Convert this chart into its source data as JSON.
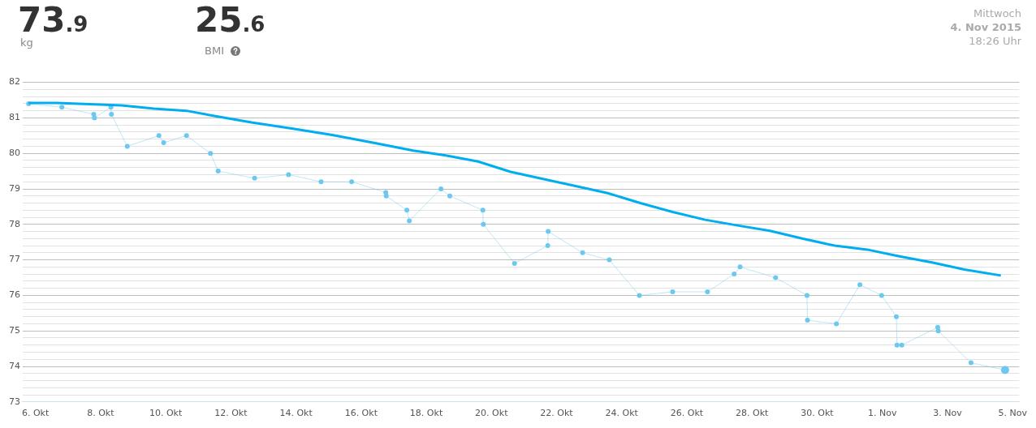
{
  "chart_data": {
    "type": "line",
    "annotations": [
      "73.9",
      "kg",
      "25.6",
      "BMI",
      "Mittwoch",
      "4. Nov 2015",
      "18:26 Uhr"
    ],
    "series": [
      {
        "color": "#6cc8ee",
        "marker": "circle",
        "line_style": "solid",
        "x": [
          "2015-10-05T19:00",
          "2015-10-06T19:30",
          "2015-10-07T19:00",
          "2015-10-07T19:30",
          "2015-10-08T07:40",
          "2015-10-08T08:00",
          "2015-10-08T19:40",
          "2015-10-09T19:00",
          "2015-10-09T22:30",
          "2015-10-10T15:20",
          "2015-10-11T09:00",
          "2015-10-11T14:40",
          "2015-10-12T17:30",
          "2015-10-13T18:30",
          "2015-10-14T18:30",
          "2015-10-15T17:00",
          "2015-10-16T18:10",
          "2015-10-16T18:30",
          "2015-10-17T09:40",
          "2015-10-17T11:30",
          "2015-10-18T10:50",
          "2015-10-18T17:20",
          "2015-10-19T17:40",
          "2015-10-19T18:00",
          "2015-10-20T17:00",
          "2015-10-21T17:30",
          "2015-10-21T17:50",
          "2015-10-22T19:10",
          "2015-10-23T14:50",
          "2015-10-24T13:00",
          "2015-10-25T13:30",
          "2015-10-26T15:10",
          "2015-10-27T10:50",
          "2015-10-27T15:10",
          "2015-10-28T17:20",
          "2015-10-29T16:30",
          "2015-10-29T16:50",
          "2015-10-30T14:10",
          "2015-10-31T07:30",
          "2015-10-31T23:30",
          "2015-11-01T10:20",
          "2015-11-01T10:50",
          "2015-11-01T14:20",
          "2015-11-02T16:50",
          "2015-11-02T17:10",
          "2015-11-03T17:20",
          "2015-11-04T18:26"
        ],
        "values": [
          81.4,
          81.3,
          81.1,
          81.0,
          81.3,
          81.1,
          80.2,
          80.5,
          80.3,
          80.5,
          80.0,
          79.5,
          79.3,
          79.4,
          79.2,
          79.2,
          78.9,
          78.8,
          78.4,
          78.1,
          79.0,
          78.8,
          78.4,
          78.0,
          76.9,
          77.4,
          77.8,
          77.2,
          77.0,
          76.0,
          76.1,
          76.1,
          76.6,
          76.8,
          76.5,
          76.0,
          75.3,
          75.2,
          76.3,
          76.0,
          75.4,
          74.6,
          74.6,
          75.1,
          75.0,
          74.1,
          73.9
        ]
      },
      {
        "color": "#00aeef",
        "marker": "none",
        "line_style": "solid",
        "x": [
          "2015-10-05T19:00",
          "2015-10-06T15:50",
          "2015-10-08T15:30",
          "2015-10-09T15:20",
          "2015-10-10T15:20",
          "2015-10-11T15:10",
          "2015-10-12T15:10",
          "2015-10-13T20:50",
          "2015-10-15T02:40",
          "2015-10-16T08:40",
          "2015-10-17T14:20",
          "2015-10-18T14:20",
          "2015-10-19T14:10",
          "2015-10-20T14:10",
          "2015-10-21T14:00",
          "2015-10-22T14:00",
          "2015-10-23T13:40",
          "2015-10-24T13:40",
          "2015-10-25T13:30",
          "2015-10-26T13:30",
          "2015-10-27T13:20",
          "2015-10-28T13:10",
          "2015-10-29T13:00",
          "2015-10-30T13:00",
          "2015-10-31T12:50",
          "2015-11-01T12:40",
          "2015-11-02T12:30",
          "2015-11-03T12:30",
          "2015-11-04T15:20"
        ],
        "values": [
          81.42,
          81.42,
          81.35,
          81.26,
          81.2,
          81.03,
          80.87,
          80.7,
          80.52,
          80.3,
          80.08,
          79.94,
          79.77,
          79.48,
          79.28,
          79.08,
          78.88,
          78.6,
          78.35,
          78.13,
          77.97,
          77.82,
          77.6,
          77.4,
          77.29,
          77.1,
          76.93,
          76.73,
          76.56
        ]
      }
    ],
    "xlim": [
      "2015-10-05T14:40",
      "2015-11-05T04:50"
    ],
    "xticks": [
      {
        "value": "2015-10-06",
        "label": "6. Okt"
      },
      {
        "value": "2015-10-08",
        "label": "8. Okt"
      },
      {
        "value": "2015-10-10",
        "label": "10. Okt"
      },
      {
        "value": "2015-10-12",
        "label": "12. Okt"
      },
      {
        "value": "2015-10-14",
        "label": "14. Okt"
      },
      {
        "value": "2015-10-16",
        "label": "16. Okt"
      },
      {
        "value": "2015-10-18",
        "label": "18. Okt"
      },
      {
        "value": "2015-10-20",
        "label": "20. Okt"
      },
      {
        "value": "2015-10-22",
        "label": "22. Okt"
      },
      {
        "value": "2015-10-24",
        "label": "24. Okt"
      },
      {
        "value": "2015-10-26",
        "label": "26. Okt"
      },
      {
        "value": "2015-10-28",
        "label": "28. Okt"
      },
      {
        "value": "2015-10-30",
        "label": "30. Okt"
      },
      {
        "value": "2015-11-01",
        "label": "1. Nov"
      },
      {
        "value": "2015-11-03",
        "label": "3. Nov"
      },
      {
        "value": "2015-11-05",
        "label": "5. Nov"
      }
    ],
    "ylim": [
      73,
      82
    ],
    "yticks": [
      73,
      {
        "value": 73.2,
        "label": null
      },
      {
        "value": 73.4,
        "label": null
      },
      {
        "value": 73.6,
        "label": null
      },
      {
        "value": 73.8,
        "label": null
      },
      74,
      {
        "value": 74.2,
        "label": null
      },
      {
        "value": 74.4,
        "label": null
      },
      {
        "value": 74.6,
        "label": null
      },
      {
        "value": 74.8,
        "label": null
      },
      75,
      {
        "value": 75.2,
        "label": null
      },
      {
        "value": 75.4,
        "label": null
      },
      {
        "value": 75.6,
        "label": null
      },
      {
        "value": 75.8,
        "label": null
      },
      76,
      {
        "value": 76.2,
        "label": null
      },
      {
        "value": 76.4,
        "label": null
      },
      {
        "value": 76.6,
        "label": null
      },
      {
        "value": 76.8,
        "label": null
      },
      77,
      {
        "value": 77.2,
        "label": null
      },
      {
        "value": 77.4,
        "label": null
      },
      {
        "value": 77.6,
        "label": null
      },
      {
        "value": 77.8,
        "label": null
      },
      78,
      {
        "value": 78.2,
        "label": null
      },
      {
        "value": 78.4,
        "label": null
      },
      {
        "value": 78.6,
        "label": null
      },
      {
        "value": 78.8,
        "label": null
      },
      79,
      {
        "value": 79.2,
        "label": null
      },
      {
        "value": 79.4,
        "label": null
      },
      {
        "value": 79.6,
        "label": null
      },
      {
        "value": 79.8,
        "label": null
      },
      80,
      {
        "value": 80.2,
        "label": null
      },
      {
        "value": 80.4,
        "label": null
      },
      {
        "value": 80.6,
        "label": null
      },
      {
        "value": 80.8,
        "label": null
      },
      81,
      {
        "value": 81.2,
        "label": null
      },
      {
        "value": 81.4,
        "label": null
      },
      {
        "value": 81.6,
        "label": null
      },
      {
        "value": 81.8,
        "label": null
      },
      82
    ],
    "grid": "y",
    "legend": false
  }
}
